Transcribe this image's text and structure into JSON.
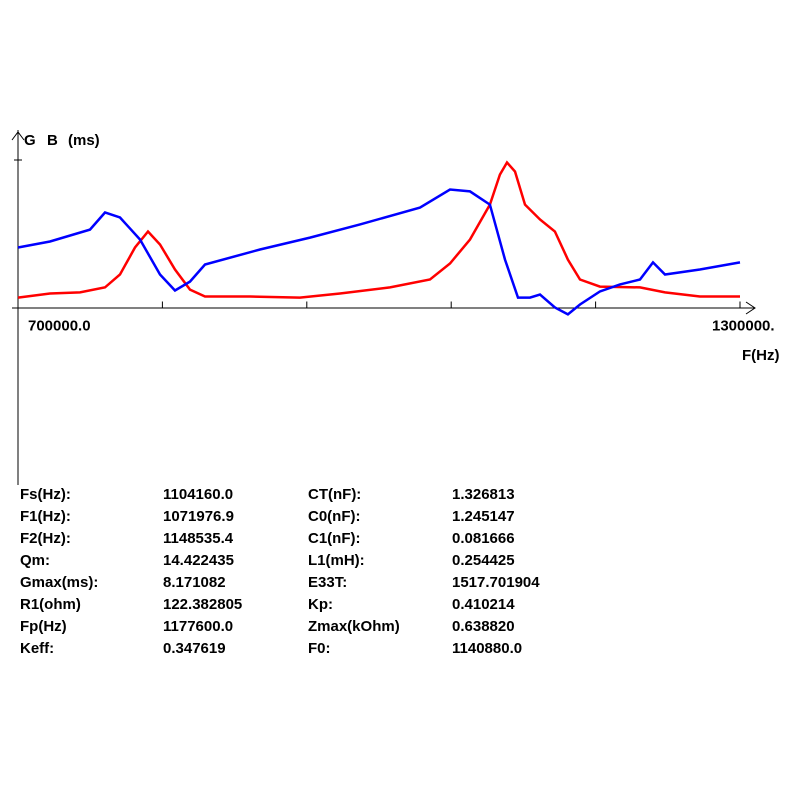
{
  "chart_data": {
    "type": "line",
    "y_label": "(ms)",
    "x_label": "F(Hz)",
    "xlim": [
      700000,
      1300000
    ],
    "ylim": [
      -10,
      10
    ],
    "xticks": [
      {
        "value": 700000,
        "label": "700000.0"
      },
      {
        "value": 1300000,
        "label": "1300000."
      }
    ],
    "xminor_ticks": [
      820000,
      940000,
      1060000,
      1180000
    ],
    "series": [
      {
        "name": "G",
        "color": "#ff0000",
        "x": [
          700000,
          726600,
          751500,
          772300,
          784800,
          797200,
          808000,
          818000,
          830500,
          842900,
          855400,
          892800,
          934300,
          967600,
          1009100,
          1042400,
          1059000,
          1075600,
          1092200,
          1100500,
          1106400,
          1113000,
          1121300,
          1133800,
          1146200,
          1157000,
          1167000,
          1183600,
          1216900,
          1237700,
          1266700,
          1300000
        ],
        "values": [
          0.56,
          0.79,
          0.85,
          1.13,
          1.86,
          3.38,
          4.28,
          3.55,
          2.14,
          1.01,
          0.62,
          0.62,
          0.56,
          0.79,
          1.13,
          1.58,
          2.48,
          3.83,
          5.8,
          7.49,
          8.17,
          7.66,
          5.8,
          4.96,
          4.28,
          2.7,
          1.58,
          1.18,
          1.13,
          0.85,
          0.62,
          0.62
        ]
      },
      {
        "name": "B",
        "color": "#0000ff",
        "x": [
          700000,
          726600,
          759800,
          772300,
          784800,
          801400,
          818000,
          830500,
          842900,
          855400,
          901100,
          942700,
          984200,
          1034100,
          1059000,
          1075600,
          1092200,
          1104700,
          1115500,
          1125500,
          1133800,
          1146200,
          1157000,
          1167000,
          1183600,
          1200300,
          1216900,
          1227700,
          1237700,
          1266700,
          1300000
        ],
        "values": [
          3.38,
          3.72,
          4.39,
          5.35,
          5.07,
          3.83,
          1.86,
          0.96,
          1.46,
          2.42,
          3.27,
          3.94,
          4.68,
          5.63,
          6.65,
          6.54,
          5.8,
          2.7,
          0.56,
          0.56,
          0.73,
          0,
          -0.39,
          0.17,
          0.9,
          1.3,
          1.58,
          2.54,
          1.86,
          2.14,
          2.54
        ]
      }
    ]
  },
  "parameters": {
    "rows": [
      [
        "Fs(Hz):",
        "1104160.0",
        "CT(nF):",
        "1.326813"
      ],
      [
        "F1(Hz):",
        "1071976.9",
        "C0(nF):",
        "1.245147"
      ],
      [
        "F2(Hz):",
        "1148535.4",
        "C1(nF):",
        "0.081666"
      ],
      [
        "Qm:",
        "14.422435",
        "L1(mH):",
        "0.254425"
      ],
      [
        "Gmax(ms):",
        "8.171082",
        "E33T:",
        "1517.701904"
      ],
      [
        "R1(ohm)",
        "122.382805",
        "Kp:",
        "0.410214"
      ],
      [
        "Fp(Hz)",
        "1177600.0",
        "Zmax(kOhm)",
        "0.638820"
      ],
      [
        "Keff:",
        "0.347619",
        "F0:",
        "1140880.0"
      ]
    ]
  }
}
